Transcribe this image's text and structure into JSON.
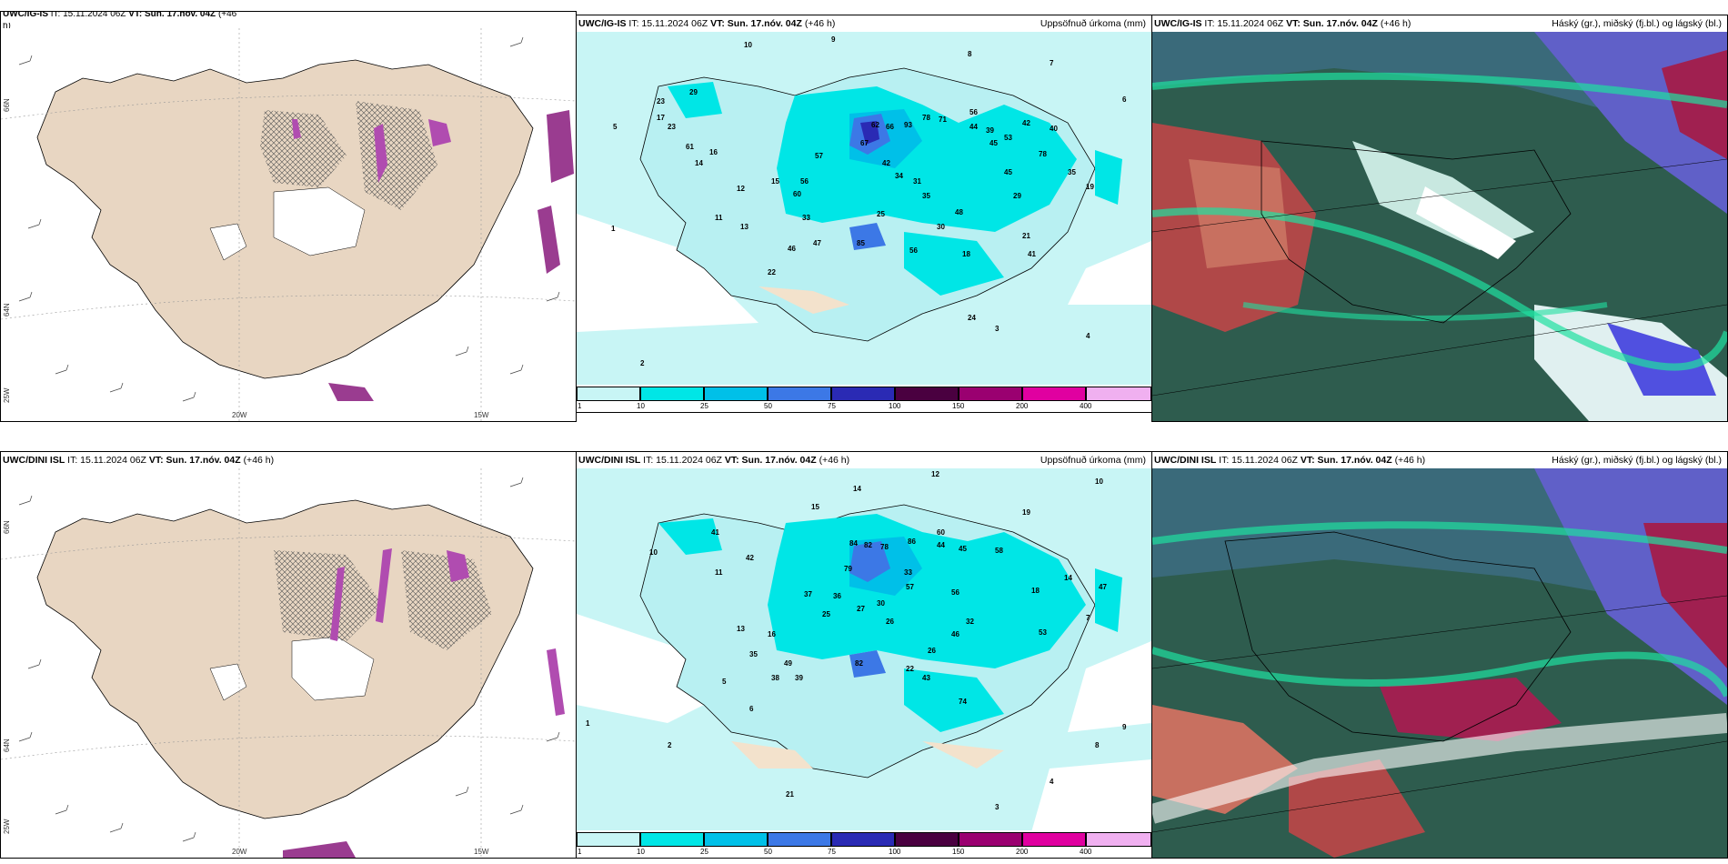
{
  "panels": {
    "tl": {
      "model": "UWC/IG-IS",
      "it": "IT: 15.11.2024 06Z",
      "vt": "VT: Sun. 17.nóv. 04Z",
      "lead": "(+46",
      "lead2": "h)"
    },
    "tm": {
      "model": "UWC/IG-IS",
      "it": "IT: 15.11.2024 06Z",
      "vt": "VT: Sun. 17.nóv. 04Z",
      "lead": "(+46 h)",
      "right": "Uppsöfnuð úrkoma (mm)"
    },
    "tr": {
      "model": "UWC/IG-IS",
      "it": "IT: 15.11.2024 06Z",
      "vt": "VT: Sun. 17.nóv. 04Z",
      "lead": "(+46 h)",
      "right": "Háský (gr.), miðský (fj.bl.) og lágský (bl.)"
    },
    "bl": {
      "model": "UWC/DINI ISL",
      "it": "IT: 15.11.2024 06Z",
      "vt": "VT: Sun. 17.nóv. 04Z",
      "lead": "(+46 h)"
    },
    "bm": {
      "model": "UWC/DINI ISL",
      "it": "IT: 15.11.2024 06Z",
      "vt": "VT: Sun. 17.nóv. 04Z",
      "lead": "(+46 h)",
      "right": "Uppsöfnuð úrkoma (mm)"
    },
    "br": {
      "model": "UWC/DINI ISL",
      "it": "IT: 15.11.2024 06Z",
      "vt": "VT: Sun. 17.nóv. 04Z",
      "lead": "(+46 h)",
      "right": "Háský (gr.), miðský (fj.bl.) og lágský (bl.)"
    }
  },
  "axis": {
    "lon_20": "20W",
    "lon_15": "15W",
    "lat_66": "66N",
    "lat_64": "64N",
    "lat_25": "25W"
  },
  "colorbar": {
    "labels": [
      "1",
      "10",
      "25",
      "50",
      "75",
      "100",
      "150",
      "200",
      "400"
    ],
    "colors": [
      "#c8f5f5",
      "#00e6e6",
      "#00c0e8",
      "#3c78e6",
      "#2a2ab4",
      "#4a0040",
      "#9a0070",
      "#e000a0",
      "#f0b0f0"
    ]
  },
  "precip_top": [
    "10",
    "9",
    "8",
    "7",
    "6",
    "5",
    "4",
    "3",
    "2",
    "1",
    "29",
    "23",
    "62",
    "66",
    "93",
    "78",
    "71",
    "56",
    "44",
    "42",
    "40",
    "53",
    "39",
    "45",
    "61",
    "16",
    "14",
    "15",
    "56",
    "57",
    "60",
    "42",
    "34",
    "31",
    "29",
    "19",
    "78",
    "45",
    "35",
    "25",
    "33",
    "30",
    "48",
    "21",
    "46",
    "47",
    "85",
    "56",
    "18",
    "41",
    "35",
    "24",
    "13",
    "12",
    "11",
    "17",
    "23",
    "22",
    "67"
  ],
  "precip_bottom": [
    "12",
    "10",
    "14",
    "15",
    "19",
    "41",
    "42",
    "60",
    "44",
    "45",
    "58",
    "84",
    "82",
    "78",
    "79",
    "86",
    "37",
    "36",
    "30",
    "33",
    "57",
    "56",
    "27",
    "25",
    "26",
    "49",
    "35",
    "82",
    "46",
    "32",
    "43",
    "38",
    "26",
    "22",
    "39",
    "47",
    "16",
    "18",
    "14",
    "13",
    "11",
    "10",
    "9",
    "8",
    "7",
    "6",
    "5",
    "4",
    "3",
    "2",
    "1",
    "21",
    "74",
    "53"
  ]
}
